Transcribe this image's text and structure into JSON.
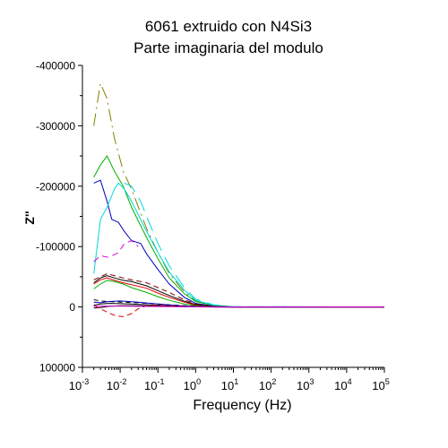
{
  "chart_data": {
    "type": "line",
    "title": "6061 extruido con N4Si3",
    "subtitle": "Parte imaginaria del modulo",
    "xlabel": "Frequency (Hz)",
    "ylabel": "Z''",
    "x_scale": "log",
    "xlim": [
      0.001,
      100000
    ],
    "ylim": [
      100000,
      -400000
    ],
    "y_inverted": true,
    "grid": false,
    "x_ticks": [
      {
        "base": "10",
        "exp": "-3"
      },
      {
        "base": "10",
        "exp": "-2"
      },
      {
        "base": "10",
        "exp": "-1"
      },
      {
        "base": "10",
        "exp": "0"
      },
      {
        "base": "10",
        "exp": "1"
      },
      {
        "base": "10",
        "exp": "2"
      },
      {
        "base": "10",
        "exp": "3"
      },
      {
        "base": "10",
        "exp": "4"
      },
      {
        "base": "10",
        "exp": "5"
      }
    ],
    "y_ticks": [
      {
        "value": -400000,
        "label": "-400000"
      },
      {
        "value": -300000,
        "label": "-300000"
      },
      {
        "value": -200000,
        "label": "-200000"
      },
      {
        "value": -100000,
        "label": "-100000"
      },
      {
        "value": 0,
        "label": "0"
      },
      {
        "value": 100000,
        "label": "100000"
      }
    ],
    "series": [
      {
        "color": "#808000",
        "dash": "14,5,2,5",
        "points": [
          [
            0.002,
            -300000
          ],
          [
            0.0025,
            -340000
          ],
          [
            0.003,
            -370000
          ],
          [
            0.0045,
            -345000
          ],
          [
            0.007,
            -280000
          ],
          [
            0.012,
            -225000
          ],
          [
            0.02,
            -195000
          ],
          [
            0.05,
            -130000
          ],
          [
            0.1,
            -90000
          ],
          [
            0.2,
            -55000
          ],
          [
            0.5,
            -25000
          ],
          [
            1,
            -10000
          ],
          [
            3,
            -3000
          ],
          [
            10,
            0
          ],
          [
            100000,
            0
          ]
        ]
      },
      {
        "color": "#00b000",
        "dash": "",
        "points": [
          [
            0.002,
            -215000
          ],
          [
            0.003,
            -235000
          ],
          [
            0.0045,
            -250000
          ],
          [
            0.007,
            -225000
          ],
          [
            0.012,
            -200000
          ],
          [
            0.02,
            -165000
          ],
          [
            0.05,
            -115000
          ],
          [
            0.1,
            -80000
          ],
          [
            0.2,
            -48000
          ],
          [
            0.5,
            -22000
          ],
          [
            1,
            -9000
          ],
          [
            3,
            -2500
          ],
          [
            10,
            0
          ],
          [
            100000,
            0
          ]
        ]
      },
      {
        "color": "#0000c0",
        "dash": "",
        "points": [
          [
            0.002,
            -205000
          ],
          [
            0.003,
            -210000
          ],
          [
            0.0045,
            -175000
          ],
          [
            0.006,
            -145000
          ],
          [
            0.009,
            -140000
          ],
          [
            0.013,
            -125000
          ],
          [
            0.02,
            -110000
          ],
          [
            0.035,
            -105000
          ],
          [
            0.05,
            -88000
          ],
          [
            0.1,
            -62000
          ],
          [
            0.2,
            -38000
          ],
          [
            0.5,
            -16000
          ],
          [
            1,
            -6000
          ],
          [
            3,
            -1500
          ],
          [
            10,
            0
          ],
          [
            100000,
            0
          ]
        ]
      },
      {
        "color": "#00d8d8",
        "dash": "",
        "points": [
          [
            0.002,
            -55000
          ],
          [
            0.003,
            -145000
          ],
          [
            0.0045,
            -165000
          ],
          [
            0.007,
            -195000
          ],
          [
            0.009,
            -205000
          ],
          [
            0.013,
            -195000
          ],
          [
            0.02,
            -175000
          ],
          [
            0.035,
            -145000
          ],
          [
            0.05,
            -125000
          ],
          [
            0.1,
            -90000
          ],
          [
            0.2,
            -58000
          ],
          [
            0.5,
            -28000
          ],
          [
            1,
            -11000
          ],
          [
            3,
            -3000
          ],
          [
            10,
            -400
          ],
          [
            100000,
            0
          ]
        ]
      },
      {
        "color": "#00d8d8",
        "dash": "16,8",
        "points": [
          [
            0.013,
            -205000
          ],
          [
            0.02,
            -200000
          ],
          [
            0.035,
            -175000
          ],
          [
            0.05,
            -150000
          ],
          [
            0.1,
            -105000
          ],
          [
            0.2,
            -68000
          ],
          [
            0.5,
            -32000
          ],
          [
            1,
            -13000
          ],
          [
            3,
            -3500
          ],
          [
            10,
            -500
          ],
          [
            100000,
            0
          ]
        ]
      },
      {
        "color": "#d000d0",
        "dash": "7,5",
        "points": [
          [
            0.002,
            -75000
          ],
          [
            0.003,
            -85000
          ],
          [
            0.005,
            -82000
          ],
          [
            0.009,
            -90000
          ],
          [
            0.013,
            -105000
          ],
          [
            0.02,
            -110000
          ],
          [
            0.03,
            -100000
          ]
        ]
      },
      {
        "color": "#800000",
        "dash": "6,4",
        "points": [
          [
            0.002,
            -45000
          ],
          [
            0.003,
            -50000
          ],
          [
            0.0045,
            -55000
          ],
          [
            0.007,
            -52000
          ],
          [
            0.012,
            -48000
          ],
          [
            0.02,
            -45000
          ],
          [
            0.05,
            -40000
          ],
          [
            0.1,
            -32000
          ],
          [
            0.2,
            -24000
          ],
          [
            0.5,
            -12000
          ],
          [
            1,
            -5000
          ],
          [
            3,
            -1200
          ],
          [
            10,
            0
          ],
          [
            100000,
            0
          ]
        ]
      },
      {
        "color": "#000000",
        "dash": "",
        "points": [
          [
            0.002,
            -40000
          ],
          [
            0.003,
            -48000
          ],
          [
            0.0045,
            -52000
          ],
          [
            0.007,
            -48000
          ],
          [
            0.012,
            -44000
          ],
          [
            0.02,
            -42000
          ],
          [
            0.05,
            -35000
          ],
          [
            0.1,
            -27000
          ],
          [
            0.2,
            -19000
          ],
          [
            0.5,
            -9500
          ],
          [
            1,
            -4000
          ],
          [
            3,
            -1000
          ],
          [
            10,
            0
          ],
          [
            100000,
            0
          ]
        ]
      },
      {
        "color": "#e00000",
        "dash": "",
        "points": [
          [
            0.002,
            -38000
          ],
          [
            0.003,
            -45000
          ],
          [
            0.0045,
            -48000
          ],
          [
            0.007,
            -44000
          ],
          [
            0.012,
            -40000
          ],
          [
            0.02,
            -37000
          ],
          [
            0.05,
            -31000
          ],
          [
            0.1,
            -23000
          ],
          [
            0.2,
            -16000
          ],
          [
            0.5,
            -8000
          ],
          [
            1,
            -3000
          ],
          [
            3,
            -700
          ],
          [
            10,
            0
          ],
          [
            100000,
            0
          ]
        ]
      },
      {
        "color": "#00b000",
        "dash": "",
        "points": [
          [
            0.002,
            -30000
          ],
          [
            0.003,
            -38000
          ],
          [
            0.0045,
            -44000
          ],
          [
            0.007,
            -42000
          ],
          [
            0.012,
            -38000
          ],
          [
            0.02,
            -32000
          ],
          [
            0.05,
            -24000
          ],
          [
            0.1,
            -17000
          ],
          [
            0.2,
            -11000
          ],
          [
            0.5,
            -5000
          ],
          [
            1,
            -2000
          ],
          [
            3,
            -500
          ],
          [
            10,
            0
          ],
          [
            100000,
            0
          ]
        ]
      },
      {
        "color": "#000000",
        "dash": "5,4",
        "points": [
          [
            0.002,
            -12000
          ],
          [
            0.003,
            -10000
          ],
          [
            0.005,
            -9000
          ],
          [
            0.01,
            -8000
          ],
          [
            0.03,
            -7000
          ],
          [
            0.1,
            -5000
          ],
          [
            0.3,
            -3000
          ],
          [
            1,
            -1200
          ],
          [
            3,
            -300
          ],
          [
            10,
            0
          ],
          [
            100000,
            0
          ]
        ]
      },
      {
        "color": "#000000",
        "dash": "",
        "points": [
          [
            0.002,
            -3000
          ],
          [
            0.003,
            -5000
          ],
          [
            0.005,
            -6000
          ],
          [
            0.01,
            -5500
          ],
          [
            0.03,
            -4500
          ],
          [
            0.1,
            -3000
          ],
          [
            0.3,
            -1500
          ],
          [
            1,
            -600
          ],
          [
            3,
            -100
          ],
          [
            10,
            0
          ],
          [
            100000,
            0
          ]
        ]
      },
      {
        "color": "#000000",
        "dash": "",
        "points": [
          [
            0.002,
            2000
          ],
          [
            0.003,
            1000
          ],
          [
            0.005,
            -1000
          ],
          [
            0.01,
            -2000
          ],
          [
            0.03,
            -2000
          ],
          [
            0.1,
            -1500
          ],
          [
            0.3,
            -800
          ],
          [
            1,
            -300
          ],
          [
            3,
            0
          ],
          [
            100000,
            0
          ]
        ]
      },
      {
        "color": "#0000c0",
        "dash": "",
        "points": [
          [
            0.002,
            -8000
          ],
          [
            0.003,
            -7000
          ],
          [
            0.005,
            -9000
          ],
          [
            0.01,
            -10000
          ],
          [
            0.03,
            -8000
          ],
          [
            0.1,
            -5000
          ],
          [
            0.3,
            -2500
          ],
          [
            1,
            -800
          ],
          [
            3,
            -100
          ],
          [
            10,
            0
          ],
          [
            100000,
            0
          ]
        ]
      },
      {
        "color": "#e00000",
        "dash": "6,4",
        "points": [
          [
            0.002,
            -2000
          ],
          [
            0.003,
            3000
          ],
          [
            0.005,
            10000
          ],
          [
            0.008,
            15000
          ],
          [
            0.012,
            16000
          ],
          [
            0.02,
            11000
          ],
          [
            0.03,
            3000
          ],
          [
            0.05,
            -2000
          ],
          [
            0.1,
            -3000
          ],
          [
            0.3,
            -1500
          ],
          [
            1,
            -500
          ],
          [
            3,
            0
          ],
          [
            100000,
            0
          ]
        ]
      },
      {
        "color": "#d000d0",
        "dash": "",
        "points": [
          [
            0.002,
            -1000
          ],
          [
            0.005,
            -1500
          ],
          [
            0.02,
            -1200
          ],
          [
            0.1,
            -800
          ],
          [
            0.5,
            -300
          ],
          [
            2,
            0
          ],
          [
            100000,
            0
          ]
        ]
      }
    ]
  }
}
